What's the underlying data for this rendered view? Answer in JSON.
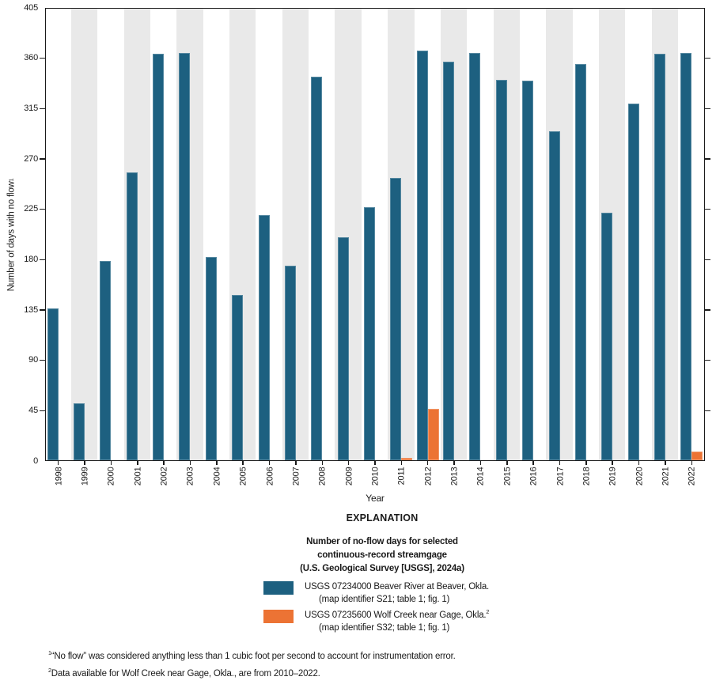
{
  "figure": {
    "explanation_heading": "EXPLANATION",
    "legend_title_lines": [
      "Number of no-flow days for selected",
      "continuous-record streamgage",
      "(U.S. Geological Survey [USGS], 2024a)"
    ],
    "legend_items": [
      {
        "label": "USGS 07234000 Beaver River at Beaver, Okla.",
        "label_sup": "",
        "sublabel": "(map identifier S21; table 1; fig. 1)",
        "color": "#1d6080"
      },
      {
        "label": "USGS 07235600 Wolf Creek near Gage, Okla.",
        "label_sup": "2",
        "sublabel": "(map identifier S32; table 1; fig. 1)",
        "color": "#ec7334"
      }
    ],
    "footnotes": [
      {
        "sup": "1",
        "text": "“No flow” was considered anything less than 1 cubic foot per second to account for instrumentation error."
      },
      {
        "sup": "2",
        "text": "Data available for Wolf Creek near Gage, Okla., are from 2010–2022."
      }
    ]
  },
  "chart_data": {
    "type": "bar",
    "title": "",
    "xlabel": "Year",
    "ylabel": "Number of days with no flow",
    "ylabel_superscript": "1",
    "ylim": [
      0,
      405
    ],
    "yticks": [
      0,
      45,
      90,
      135,
      180,
      225,
      270,
      315,
      360,
      405
    ],
    "grid": false,
    "legend_position": "below",
    "categories": [
      1998,
      1999,
      2000,
      2001,
      2002,
      2003,
      2004,
      2005,
      2006,
      2007,
      2008,
      2009,
      2010,
      2011,
      2012,
      2013,
      2014,
      2015,
      2016,
      2017,
      2018,
      2019,
      2020,
      2021,
      2022
    ],
    "series": [
      {
        "name": "USGS 07234000 Beaver River at Beaver, Okla.",
        "short": "beaver",
        "color": "#1d6080",
        "values": [
          136,
          51,
          178,
          257,
          363,
          364,
          182,
          148,
          219,
          174,
          343,
          199,
          226,
          252,
          366,
          356,
          364,
          340,
          339,
          294,
          354,
          221,
          319,
          363,
          364
        ]
      },
      {
        "name": "USGS 07235600 Wolf Creek near Gage, Okla.",
        "short": "wolf",
        "color": "#ec7334",
        "values": [
          null,
          null,
          null,
          null,
          null,
          null,
          null,
          null,
          null,
          null,
          null,
          null,
          0,
          2,
          46,
          0,
          0,
          0,
          0,
          0,
          0,
          0,
          0,
          0,
          8
        ]
      }
    ],
    "shaded_years": [
      1999,
      2001,
      2003,
      2005,
      2007,
      2009,
      2011,
      2013,
      2015,
      2017,
      2019,
      2021
    ],
    "band_color": "#e9e9e9",
    "axis_color": "#1a1a1a"
  }
}
